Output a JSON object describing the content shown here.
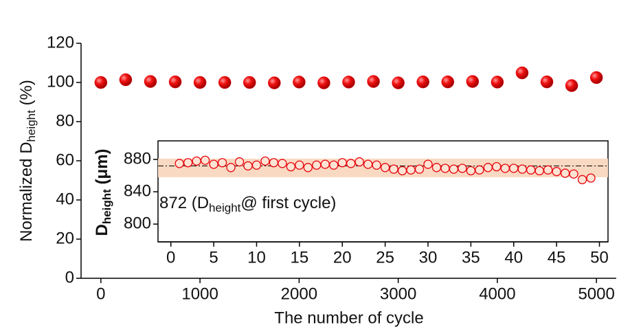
{
  "chart_data": [
    {
      "type": "scatter",
      "y_label": {
        "main": "Normalized D",
        "sub": "height",
        "tail": " (%)"
      },
      "x_label": "The number of cycle",
      "x": [
        0,
        250,
        500,
        750,
        1000,
        1250,
        1500,
        1750,
        2000,
        2250,
        2500,
        2750,
        3000,
        3250,
        3500,
        3750,
        4000,
        4250,
        4500,
        4750,
        5000
      ],
      "series": [
        {
          "color": "#e8000b",
          "values": [
            100,
            101.4,
            100.5,
            100.3,
            100,
            100,
            100,
            99.8,
            100.2,
            99.8,
            100.2,
            100.5,
            99.8,
            100.3,
            100.3,
            100.5,
            100.2,
            104.9,
            100.3,
            98.4,
            102.5
          ]
        }
      ],
      "xlim": [
        -200,
        5200
      ],
      "xticks": [
        0,
        1000,
        2000,
        3000,
        4000,
        5000
      ],
      "ylim": [
        0,
        120
      ],
      "yticks": [
        0,
        20,
        40,
        60,
        80,
        100,
        120
      ]
    },
    {
      "type": "scatter",
      "y_label": {
        "main": "D",
        "sub": "height",
        "tail": " (μm)"
      },
      "annotation": {
        "main": "872 (D",
        "sub": "height",
        "tail": "@ first cycle)"
      },
      "reference_line": 872,
      "band": [
        858,
        881
      ],
      "band_color": "#f9d9c2",
      "x": [
        1,
        2,
        3,
        4,
        5,
        6,
        7,
        8,
        9,
        10,
        11,
        12,
        13,
        14,
        15,
        16,
        17,
        18,
        19,
        20,
        21,
        22,
        23,
        24,
        25,
        26,
        27,
        28,
        29,
        30,
        31,
        32,
        33,
        34,
        35,
        36,
        37,
        38,
        39,
        40,
        41,
        42,
        43,
        44,
        45,
        46,
        47,
        48,
        49
      ],
      "series": [
        {
          "color": "#e8000b",
          "values": [
            875,
            876,
            878,
            879,
            874,
            876,
            870,
            877,
            872,
            873,
            878,
            876,
            875,
            871,
            873,
            870,
            873,
            874,
            873,
            876,
            875,
            877,
            874,
            873,
            870,
            868,
            866,
            867,
            868,
            874,
            870,
            869,
            868,
            869,
            866,
            867,
            870,
            871,
            869,
            869,
            868,
            867,
            866,
            867,
            865,
            863,
            862,
            855,
            857
          ]
        }
      ],
      "xlim": [
        -1.5,
        51
      ],
      "xticks": [
        0,
        5,
        10,
        15,
        20,
        25,
        30,
        35,
        40,
        45,
        50
      ],
      "ylim": [
        778,
        903
      ],
      "yticks": [
        800,
        840,
        880
      ]
    }
  ]
}
